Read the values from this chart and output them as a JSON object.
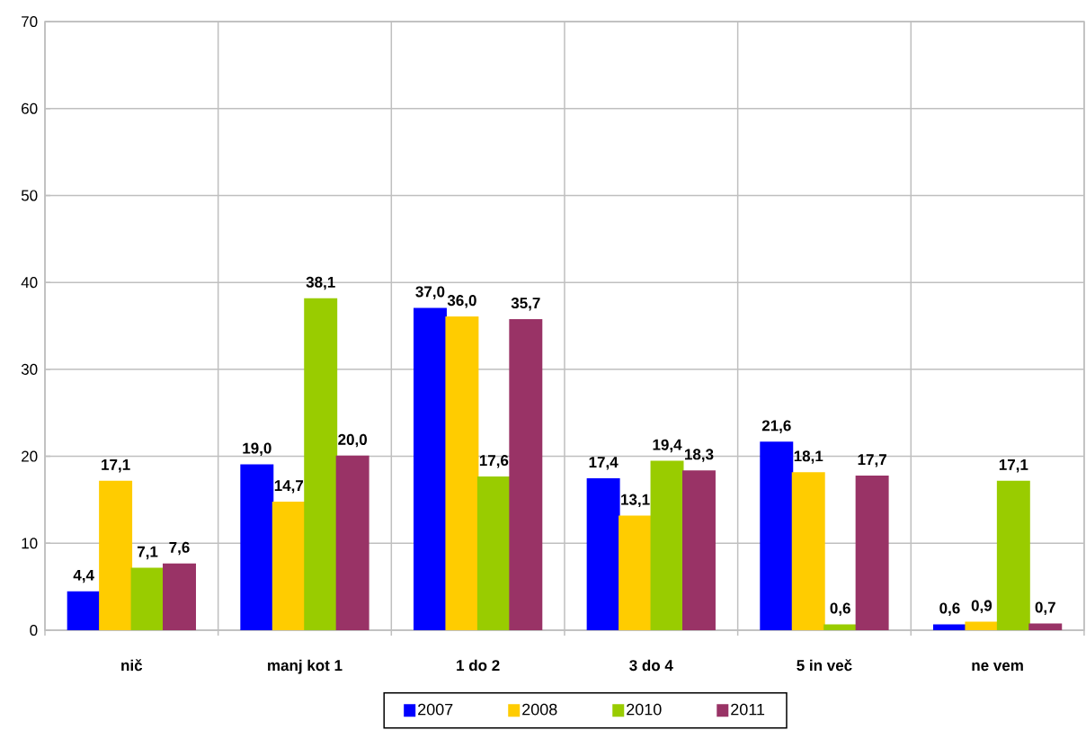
{
  "chart_data": {
    "type": "bar",
    "categories": [
      "nič",
      "manj kot 1",
      "1 do 2",
      "3 do 4",
      "5 in več",
      "ne vem"
    ],
    "series": [
      {
        "name": "2007",
        "color": "#0000ff",
        "values": [
          4.4,
          19.0,
          37.0,
          17.4,
          21.6,
          0.6
        ],
        "value_labels": [
          "4,4",
          "19,0",
          "37,0",
          "17,4",
          "21,6",
          "0,6"
        ]
      },
      {
        "name": "2008",
        "color": "#ffcc00",
        "values": [
          17.1,
          14.7,
          36.0,
          13.1,
          18.1,
          0.9
        ],
        "value_labels": [
          "17,1",
          "14,7",
          "36,0",
          "13,1",
          "18,1",
          "0,9"
        ]
      },
      {
        "name": "2010",
        "color": "#99cc00",
        "values": [
          7.1,
          38.1,
          17.6,
          19.4,
          0.6,
          17.1
        ],
        "value_labels": [
          "7,1",
          "38,1",
          "17,6",
          "19,4",
          "0,6",
          "17,1"
        ]
      },
      {
        "name": "2011",
        "color": "#993366",
        "values": [
          7.6,
          20.0,
          35.7,
          18.3,
          17.7,
          0.7
        ],
        "value_labels": [
          "7,6",
          "20,0",
          "35,7",
          "18,3",
          "17,7",
          "0,7"
        ]
      }
    ],
    "ylim": [
      0,
      70
    ],
    "yticks": [
      0,
      10,
      20,
      30,
      40,
      50,
      60,
      70
    ],
    "grid": true,
    "legend": "bottom"
  }
}
